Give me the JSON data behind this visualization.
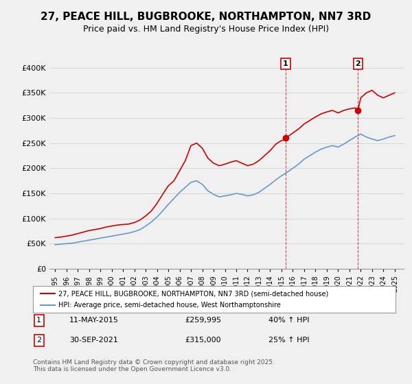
{
  "title": "27, PEACE HILL, BUGBROOKE, NORTHAMPTON, NN7 3RD",
  "subtitle": "Price paid vs. HM Land Registry's House Price Index (HPI)",
  "title_fontsize": 11,
  "subtitle_fontsize": 9,
  "background_color": "#f0f0f0",
  "plot_background": "#f0f0f0",
  "red_line_color": "#cc0000",
  "blue_line_color": "#6699cc",
  "marker1_date_x": 2015.36,
  "marker2_date_x": 2021.75,
  "marker1_y": 259995,
  "marker2_y": 315000,
  "ylim": [
    0,
    420000
  ],
  "xlim": [
    1994.5,
    2025.8
  ],
  "yticks": [
    0,
    50000,
    100000,
    150000,
    200000,
    250000,
    300000,
    350000,
    400000
  ],
  "ytick_labels": [
    "£0",
    "£50K",
    "£100K",
    "£150K",
    "£200K",
    "£250K",
    "£300K",
    "£350K",
    "£400K"
  ],
  "xtick_years": [
    1995,
    1996,
    1997,
    1998,
    1999,
    2000,
    2001,
    2002,
    2003,
    2004,
    2005,
    2006,
    2007,
    2008,
    2009,
    2010,
    2011,
    2012,
    2013,
    2014,
    2015,
    2016,
    2017,
    2018,
    2019,
    2020,
    2021,
    2022,
    2023,
    2024,
    2025
  ],
  "legend_label_red": "27, PEACE HILL, BUGBROOKE, NORTHAMPTON, NN7 3RD (semi-detached house)",
  "legend_label_blue": "HPI: Average price, semi-detached house, West Northamptonshire",
  "annotation1_label": "11-MAY-2015",
  "annotation1_price": "£259,995",
  "annotation1_hpi": "40% ↑ HPI",
  "annotation2_label": "30-SEP-2021",
  "annotation2_price": "£315,000",
  "annotation2_hpi": "25% ↑ HPI",
  "footer": "Contains HM Land Registry data © Crown copyright and database right 2025.\nThis data is licensed under the Open Government Licence v3.0.",
  "red_x": [
    1995.0,
    1995.5,
    1996.0,
    1996.5,
    1997.0,
    1997.5,
    1998.0,
    1998.5,
    1999.0,
    1999.5,
    2000.0,
    2000.5,
    2001.0,
    2001.5,
    2002.0,
    2002.5,
    2003.0,
    2003.5,
    2004.0,
    2004.5,
    2005.0,
    2005.5,
    2006.0,
    2006.5,
    2007.0,
    2007.5,
    2008.0,
    2008.5,
    2009.0,
    2009.5,
    2010.0,
    2010.5,
    2011.0,
    2011.5,
    2012.0,
    2012.5,
    2013.0,
    2013.5,
    2014.0,
    2014.5,
    2015.0,
    2015.5,
    2015.36,
    2016.0,
    2016.5,
    2017.0,
    2017.5,
    2018.0,
    2018.5,
    2019.0,
    2019.5,
    2020.0,
    2020.5,
    2021.0,
    2021.5,
    2021.75,
    2022.0,
    2022.5,
    2023.0,
    2023.5,
    2024.0,
    2024.5,
    2025.0
  ],
  "red_y": [
    62000,
    63000,
    65000,
    67000,
    70000,
    73000,
    76000,
    78000,
    80000,
    83000,
    85000,
    87000,
    88000,
    89000,
    92000,
    97000,
    105000,
    115000,
    130000,
    148000,
    165000,
    175000,
    195000,
    215000,
    245000,
    250000,
    240000,
    220000,
    210000,
    205000,
    208000,
    212000,
    215000,
    210000,
    205000,
    208000,
    215000,
    225000,
    235000,
    248000,
    255000,
    258000,
    259995,
    270000,
    278000,
    288000,
    295000,
    302000,
    308000,
    312000,
    315000,
    310000,
    315000,
    318000,
    320000,
    315000,
    340000,
    350000,
    355000,
    345000,
    340000,
    345000,
    350000
  ],
  "blue_x": [
    1995.0,
    1995.5,
    1996.0,
    1996.5,
    1997.0,
    1997.5,
    1998.0,
    1998.5,
    1999.0,
    1999.5,
    2000.0,
    2000.5,
    2001.0,
    2001.5,
    2002.0,
    2002.5,
    2003.0,
    2003.5,
    2004.0,
    2004.5,
    2005.0,
    2005.5,
    2006.0,
    2006.5,
    2007.0,
    2007.5,
    2008.0,
    2008.5,
    2009.0,
    2009.5,
    2010.0,
    2010.5,
    2011.0,
    2011.5,
    2012.0,
    2012.5,
    2013.0,
    2013.5,
    2014.0,
    2014.5,
    2015.0,
    2015.5,
    2016.0,
    2016.5,
    2017.0,
    2017.5,
    2018.0,
    2018.5,
    2019.0,
    2019.5,
    2020.0,
    2020.5,
    2021.0,
    2021.5,
    2022.0,
    2022.5,
    2023.0,
    2023.5,
    2024.0,
    2024.5,
    2025.0
  ],
  "blue_y": [
    48000,
    49000,
    50000,
    51000,
    53000,
    55000,
    57000,
    59000,
    61000,
    63000,
    65000,
    67000,
    69000,
    71000,
    74000,
    78000,
    85000,
    93000,
    103000,
    115000,
    128000,
    140000,
    152000,
    162000,
    172000,
    175000,
    168000,
    155000,
    148000,
    143000,
    145000,
    147000,
    150000,
    148000,
    145000,
    147000,
    152000,
    160000,
    168000,
    177000,
    185000,
    192000,
    200000,
    208000,
    218000,
    225000,
    232000,
    238000,
    242000,
    245000,
    242000,
    248000,
    255000,
    262000,
    268000,
    262000,
    258000,
    255000,
    258000,
    262000,
    265000
  ]
}
